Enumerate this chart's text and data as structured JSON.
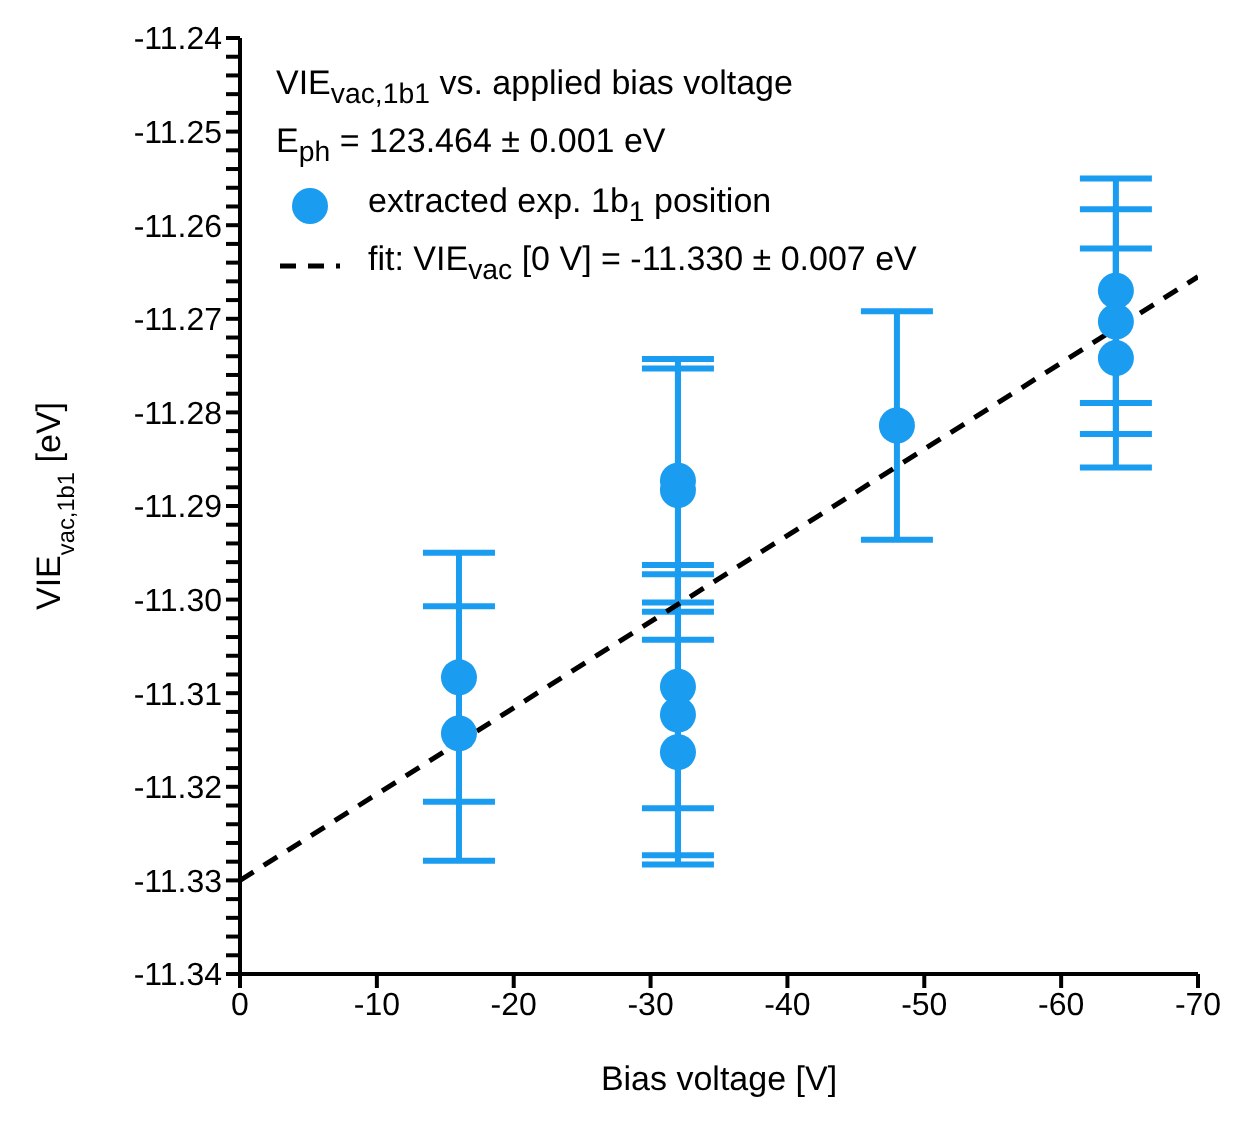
{
  "chart_data": {
    "type": "scatter",
    "title": "VIE$_{vac,1b1}$ vs. applied bias voltage",
    "subtitle": "E$_{ph}$ = 123.464 ± 0.001 eV",
    "xlabel": "Bias voltage [V]",
    "ylabel": "VIE$_{vac,1b1}$ [eV]",
    "xlim": [
      0,
      -70
    ],
    "xticks": [
      0,
      -10,
      -20,
      -30,
      -40,
      -50,
      -60,
      -70
    ],
    "ylim": [
      -11.34,
      -11.24
    ],
    "yticks": [
      -11.34,
      {
        "value": -11.338,
        "label": null
      },
      {
        "value": -11.336,
        "label": null
      },
      {
        "value": -11.334,
        "label": null
      },
      {
        "value": -11.332,
        "label": null
      },
      {
        "value": -11.33,
        "label": "-11.33"
      },
      {
        "value": -11.328,
        "label": null
      },
      {
        "value": -11.326,
        "label": null
      },
      {
        "value": -11.324,
        "label": null
      },
      {
        "value": -11.322,
        "label": null
      },
      {
        "value": -11.32,
        "label": "-11.32"
      },
      {
        "value": -11.318,
        "label": null
      },
      {
        "value": -11.316,
        "label": null
      },
      {
        "value": -11.314,
        "label": null
      },
      {
        "value": -11.312,
        "label": null
      },
      {
        "value": -11.31,
        "label": "-11.31"
      },
      {
        "value": -11.308,
        "label": null
      },
      {
        "value": -11.306,
        "label": null
      },
      {
        "value": -11.304,
        "label": null
      },
      {
        "value": -11.302,
        "label": null
      },
      {
        "value": -11.3,
        "label": "-11.30"
      },
      {
        "value": -11.298,
        "label": null
      },
      {
        "value": -11.296,
        "label": null
      },
      {
        "value": -11.294,
        "label": null
      },
      {
        "value": -11.292,
        "label": null
      },
      {
        "value": -11.29,
        "label": "-11.29"
      },
      {
        "value": -11.288,
        "label": null
      },
      {
        "value": -11.286,
        "label": null
      },
      {
        "value": -11.284,
        "label": null
      },
      {
        "value": -11.282,
        "label": null
      },
      {
        "value": -11.28,
        "label": "-11.28"
      },
      {
        "value": -11.278,
        "label": null
      },
      {
        "value": -11.276,
        "label": null
      },
      {
        "value": -11.274,
        "label": null
      },
      {
        "value": -11.272,
        "label": null
      },
      {
        "value": -11.27,
        "label": "-11.27"
      },
      {
        "value": -11.268,
        "label": null
      },
      {
        "value": -11.266,
        "label": null
      },
      {
        "value": -11.264,
        "label": null
      },
      {
        "value": -11.262,
        "label": null
      },
      {
        "value": -11.26,
        "label": "-11.26"
      },
      {
        "value": -11.258,
        "label": null
      },
      {
        "value": -11.256,
        "label": null
      },
      {
        "value": -11.254,
        "label": null
      },
      {
        "value": -11.252,
        "label": null
      },
      {
        "value": -11.25,
        "label": "-11.25"
      },
      {
        "value": -11.248,
        "label": null
      },
      {
        "value": -11.246,
        "label": null
      },
      {
        "value": -11.244,
        "label": null
      },
      {
        "value": -11.242,
        "label": null
      },
      -11.24
    ],
    "legend": "top left",
    "series": [
      {
        "name": "extracted exp. 1b$_{1}$ position",
        "color": "#1a9cf0",
        "marker": "circle",
        "x": [
          -16,
          -16,
          -32,
          -32,
          -32,
          -32,
          -32,
          -48,
          -64,
          -64,
          -64
        ],
        "values": [
          -11.3083,
          -11.3143,
          -11.2873,
          -11.2883,
          -11.3093,
          -11.3123,
          -11.3163,
          -11.2814,
          -11.267,
          -11.2703,
          -11.2742
        ],
        "errors": [
          0.0133,
          0.0136,
          0.013,
          0.013,
          0.013,
          0.015,
          0.012,
          0.0122,
          0.012,
          0.012,
          0.0117
        ]
      },
      {
        "name": "fit: VIE$_{vac}$ [0 V] = -11.330 ± 0.007 eV",
        "type": "line",
        "color": "#000000",
        "marker": "none",
        "line_style": "dashed",
        "x": [
          0,
          -70
        ],
        "values": [
          -11.33,
          -11.2655
        ]
      }
    ]
  }
}
